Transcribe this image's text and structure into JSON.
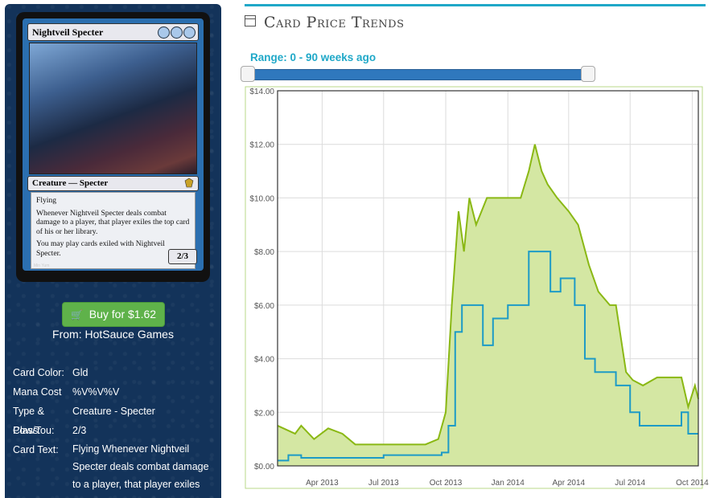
{
  "card": {
    "name": "Nightveil Specter",
    "mana_symbols": [
      "U/B",
      "U/B",
      "U/B"
    ],
    "type_line": "Creature — Specter",
    "rules_text": [
      "Flying",
      "Whenever Nightveil Specter deals combat damage to a player, that player exiles the top card of his or her library.",
      "You may play cards exiled with Nightveil Specter."
    ],
    "power_toughness": "2/3",
    "artist": "Min Yum"
  },
  "buy_button": {
    "label": "Buy for $1.62",
    "icon": "cart-icon"
  },
  "from": "From: HotSauce Games",
  "info": [
    {
      "key": "Card Color:",
      "value": "Gld"
    },
    {
      "key": "Mana Cost",
      "value": "%V%V%V"
    },
    {
      "key": "Type & Class:",
      "value": "Creature - Specter"
    },
    {
      "key": "Pow/Tou:",
      "value": "2/3"
    },
    {
      "key": "Card Text:",
      "value": "Flying Whenever Nightveil Specter deals combat damage to a player, that player exiles"
    }
  ],
  "section_title": "Card Price Trends",
  "section_icon": "calendar-icon",
  "range_label": "Range: 0 - 90 weeks ago",
  "colors": {
    "accent": "#1fa8c8",
    "green_series": "#8ab814",
    "green_fill": "#d4e7a3",
    "blue_series": "#1d9bc6",
    "slider": "#2f78bd"
  },
  "chart_data": {
    "type": "area",
    "x_tick_labels": [
      "Apr 2013",
      "Jul 2013",
      "Oct 2013",
      "Jan 2014",
      "Apr 2014",
      "Jul 2014",
      "Oct 2014"
    ],
    "y_tick_labels": [
      "$0.00",
      "$2.00",
      "$4.00",
      "$6.00",
      "$8.00",
      "$10.00",
      "$12.00",
      "$14.00"
    ],
    "ylim": [
      0,
      14
    ],
    "xlim": [
      "2013-01-25",
      "2014-10-10"
    ],
    "grid": true,
    "series": [
      {
        "color": "green",
        "x": [
          "2013-01-25",
          "2013-02-20",
          "2013-03-01",
          "2013-03-20",
          "2013-04-10",
          "2013-05-01",
          "2013-05-20",
          "2013-06-10",
          "2013-07-01",
          "2013-07-20",
          "2013-08-10",
          "2013-09-01",
          "2013-09-20",
          "2013-10-01",
          "2013-10-10",
          "2013-10-20",
          "2013-10-28",
          "2013-11-05",
          "2013-11-15",
          "2013-12-01",
          "2013-12-15",
          "2014-01-01",
          "2014-01-20",
          "2014-02-01",
          "2014-02-10",
          "2014-02-20",
          "2014-03-01",
          "2014-03-15",
          "2014-04-01",
          "2014-04-15",
          "2014-05-01",
          "2014-05-15",
          "2014-06-01",
          "2014-06-10",
          "2014-06-25",
          "2014-07-05",
          "2014-07-20",
          "2014-08-10",
          "2014-09-01",
          "2014-09-15",
          "2014-09-25",
          "2014-10-05",
          "2014-10-10"
        ],
        "y": [
          1.5,
          1.2,
          1.5,
          1.0,
          1.4,
          1.2,
          0.8,
          0.8,
          0.8,
          0.8,
          0.8,
          0.8,
          1.0,
          2.0,
          6.0,
          9.5,
          8.0,
          10.0,
          9.0,
          10.0,
          10.0,
          10.0,
          10.0,
          11.0,
          12.0,
          11.0,
          10.5,
          10.0,
          9.5,
          9.0,
          7.5,
          6.5,
          6.0,
          6.0,
          3.5,
          3.2,
          3.0,
          3.3,
          3.3,
          3.3,
          2.2,
          3.0,
          2.5
        ]
      },
      {
        "color": "blue",
        "x": [
          "2013-01-25",
          "2013-02-10",
          "2013-03-01",
          "2013-04-01",
          "2013-05-01",
          "2013-06-01",
          "2013-07-01",
          "2013-08-01",
          "2013-09-01",
          "2013-09-25",
          "2013-10-05",
          "2013-10-15",
          "2013-10-25",
          "2013-11-10",
          "2013-11-25",
          "2013-12-10",
          "2014-01-01",
          "2014-01-15",
          "2014-02-01",
          "2014-02-20",
          "2014-03-05",
          "2014-03-20",
          "2014-04-10",
          "2014-04-25",
          "2014-05-10",
          "2014-05-25",
          "2014-06-10",
          "2014-07-01",
          "2014-07-15",
          "2014-08-01",
          "2014-08-20",
          "2014-09-05",
          "2014-09-15",
          "2014-09-25",
          "2014-10-10"
        ],
        "y": [
          0.2,
          0.4,
          0.3,
          0.3,
          0.3,
          0.3,
          0.4,
          0.4,
          0.4,
          0.5,
          1.5,
          5.0,
          6.0,
          6.0,
          4.5,
          5.5,
          6.0,
          6.0,
          8.0,
          8.0,
          6.5,
          7.0,
          6.0,
          4.0,
          3.5,
          3.5,
          3.0,
          2.0,
          1.5,
          1.5,
          1.5,
          1.5,
          2.0,
          1.2,
          1.2
        ]
      }
    ]
  }
}
